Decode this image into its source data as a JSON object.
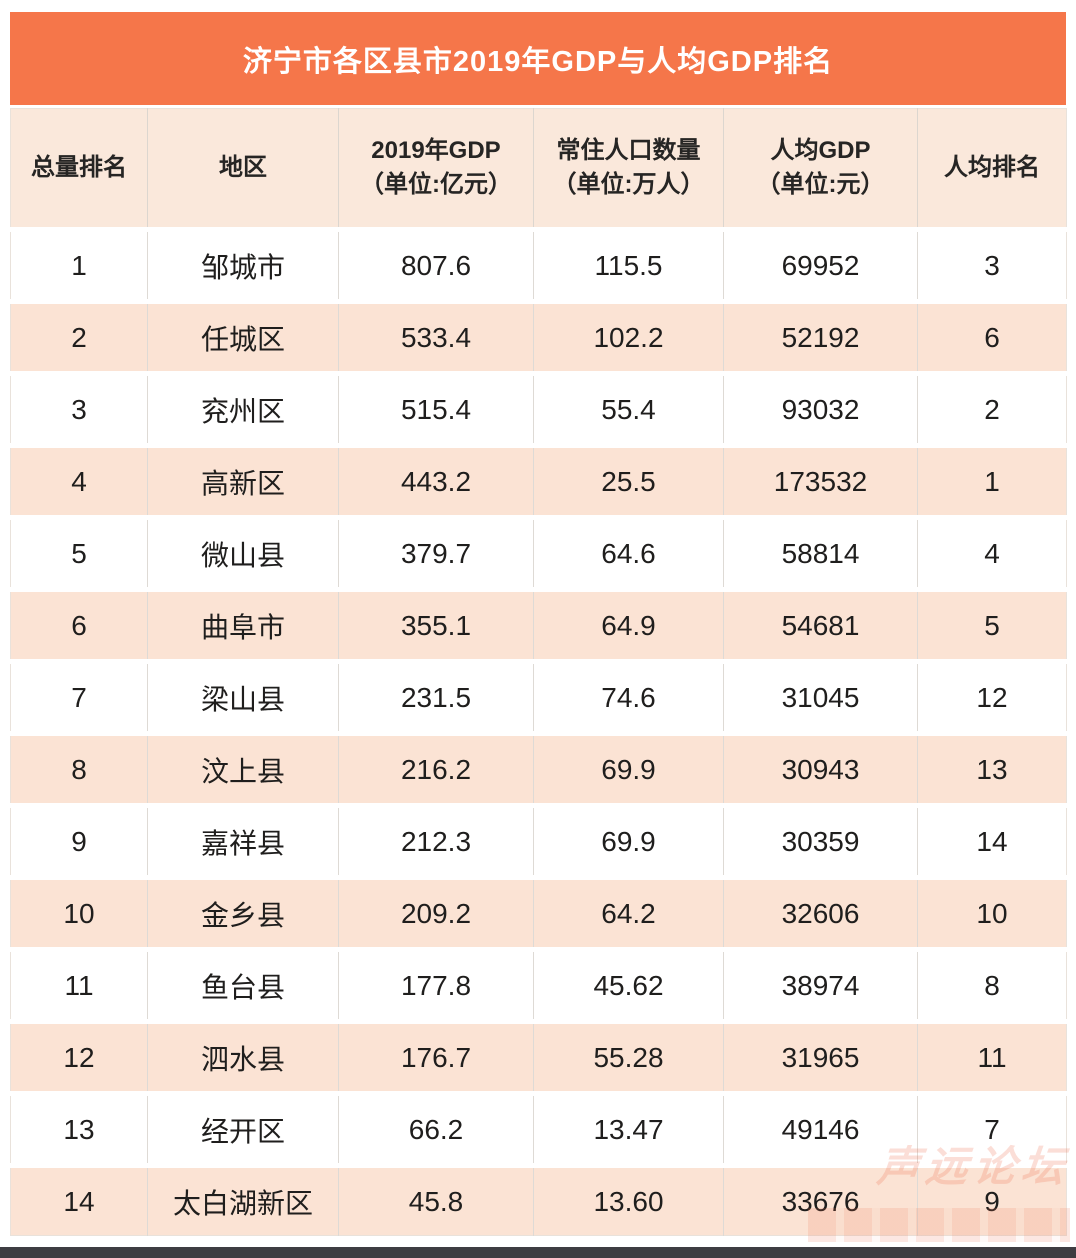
{
  "page": {
    "watermark": "声远论坛"
  },
  "colors": {
    "accent_orange": "#F5764A",
    "header_bg": "#FAE8DB",
    "row_alt_bg": "#FBE3D4",
    "row_bg": "#FFFFFF",
    "grid_line": "#DEDAD5",
    "bottom_bar": "#3E3D42",
    "title_text": "#FFFFFF",
    "body_text": "#1F1E1D",
    "watermark_tint": "#EC6A48"
  },
  "chart_data": {
    "type": "table",
    "title": "济宁市各区县市2019年GDP与人均GDP排名",
    "headers": [
      {
        "line1": "总量排名",
        "line2": ""
      },
      {
        "line1": "地区",
        "line2": ""
      },
      {
        "line1": "2019年GDP",
        "line2": "（单位:亿元）"
      },
      {
        "line1": "常住人口数量",
        "line2": "（单位:万人）"
      },
      {
        "line1": "人均GDP",
        "line2": "（单位:元）"
      },
      {
        "line1": "人均排名",
        "line2": ""
      }
    ],
    "rows": [
      [
        "1",
        "邹城市",
        "807.6",
        "115.5",
        "69952",
        "3"
      ],
      [
        "2",
        "任城区",
        "533.4",
        "102.2",
        "52192",
        "6"
      ],
      [
        "3",
        "兖州区",
        "515.4",
        "55.4",
        "93032",
        "2"
      ],
      [
        "4",
        "高新区",
        "443.2",
        "25.5",
        "173532",
        "1"
      ],
      [
        "5",
        "微山县",
        "379.7",
        "64.6",
        "58814",
        "4"
      ],
      [
        "6",
        "曲阜市",
        "355.1",
        "64.9",
        "54681",
        "5"
      ],
      [
        "7",
        "梁山县",
        "231.5",
        "74.6",
        "31045",
        "12"
      ],
      [
        "8",
        "汶上县",
        "216.2",
        "69.9",
        "30943",
        "13"
      ],
      [
        "9",
        "嘉祥县",
        "212.3",
        "69.9",
        "30359",
        "14"
      ],
      [
        "10",
        "金乡县",
        "209.2",
        "64.2",
        "32606",
        "10"
      ],
      [
        "11",
        "鱼台县",
        "177.8",
        "45.62",
        "38974",
        "8"
      ],
      [
        "12",
        "泗水县",
        "176.7",
        "55.28",
        "31965",
        "11"
      ],
      [
        "13",
        "经开区",
        "66.2",
        "13.47",
        "49146",
        "7"
      ],
      [
        "14",
        "太白湖新区",
        "45.8",
        "13.60",
        "33676",
        "9"
      ]
    ]
  }
}
